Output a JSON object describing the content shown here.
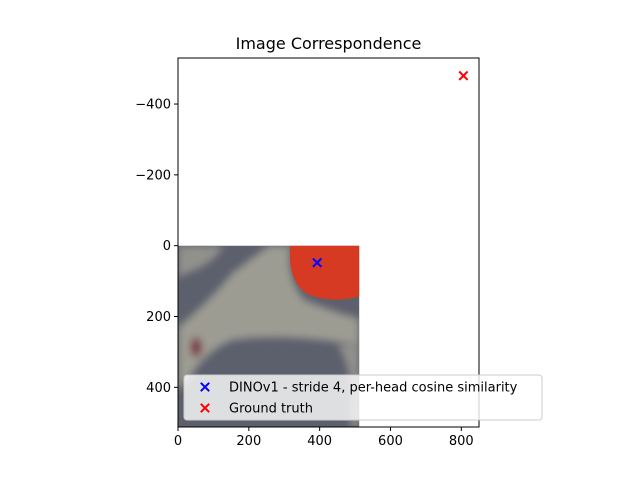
{
  "chart_data": {
    "type": "scatter",
    "title": "Image Correspondence",
    "xlabel": "",
    "ylabel": "",
    "xlim": [
      0,
      850
    ],
    "ylim": [
      512,
      -530
    ],
    "y_inverted": true,
    "xticks": [
      0,
      200,
      400,
      600,
      800
    ],
    "xtick_labels": [
      "0",
      "200",
      "400",
      "600",
      "800"
    ],
    "yticks": [
      -400,
      -200,
      0,
      200,
      400
    ],
    "ytick_labels": [
      "−400",
      "−200",
      "0",
      "200",
      "400"
    ],
    "background_image": {
      "extent": [
        0,
        512,
        512,
        0
      ],
      "description_colors": {
        "background": "#5c5f6c",
        "membrane": "#a8a79a",
        "cell": "#d63a22"
      }
    },
    "series": [
      {
        "name": "DINOv1 - stride 4, per-head cosine similarity",
        "marker": "x",
        "color": "#0000ff",
        "points": [
          {
            "x": 393,
            "y": 48
          }
        ]
      },
      {
        "name": "Ground truth",
        "marker": "x",
        "color": "#ff0000",
        "points": [
          {
            "x": 806,
            "y": -480
          }
        ]
      }
    ],
    "legend": {
      "placement": "lower-right"
    },
    "grid": false
  }
}
